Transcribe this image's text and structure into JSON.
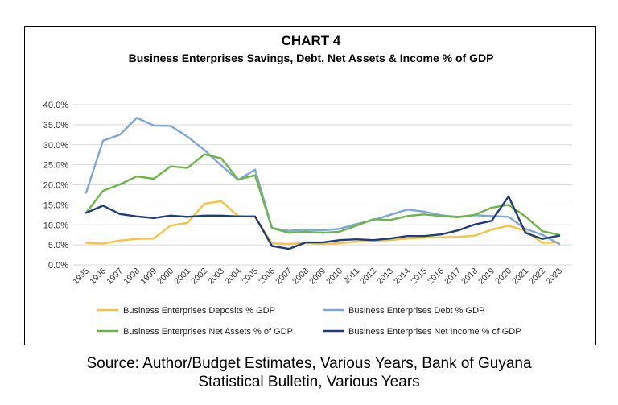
{
  "chart_data": {
    "type": "line",
    "title": "CHART 4",
    "subtitle": "Business Enterprises Savings, Debt, Net Assets & Income % of GDP",
    "xlabel": "",
    "ylabel": "",
    "ylim": [
      0,
      40
    ],
    "y_ticks": [
      "0.0%",
      "5.0%",
      "10.0%",
      "15.0%",
      "20.0%",
      "25.0%",
      "30.0%",
      "35.0%",
      "40.0%"
    ],
    "categories": [
      "1995",
      "1996",
      "1997",
      "1998",
      "1999",
      "2000",
      "2001",
      "2002",
      "2003",
      "2004",
      "2005",
      "2006",
      "2007",
      "2008",
      "2009",
      "2010",
      "2011",
      "2012",
      "2013",
      "2014",
      "2015",
      "2016",
      "2017",
      "2018",
      "2019",
      "2020",
      "2021",
      "2022",
      "2023"
    ],
    "grid": true,
    "legend_position": "bottom",
    "series": [
      {
        "name": "Business Enterprises Deposits % GDP",
        "color": "#F6C343",
        "values": [
          5.5,
          5.3,
          6.1,
          6.5,
          6.6,
          9.8,
          10.5,
          15.3,
          15.9,
          12.2,
          12.0,
          5.4,
          5.2,
          5.5,
          5.2,
          5.4,
          5.8,
          6.0,
          6.2,
          6.6,
          6.8,
          6.9,
          7.0,
          7.3,
          8.8,
          9.8,
          8.5,
          5.5,
          5.6
        ]
      },
      {
        "name": "Business Enterprises Debt % GDP",
        "color": "#7EA6D8",
        "values": [
          18.0,
          31.0,
          32.5,
          36.7,
          34.8,
          34.7,
          32.0,
          28.7,
          24.8,
          21.2,
          23.8,
          9.2,
          8.5,
          8.8,
          8.6,
          9.0,
          10.2,
          11.2,
          12.5,
          13.8,
          13.3,
          12.4,
          12.0,
          12.4,
          12.2,
          12.0,
          9.0,
          7.5,
          5.2
        ]
      },
      {
        "name": "Business Enterprises Net Assets % of GDP",
        "color": "#6DB548",
        "values": [
          13.0,
          18.5,
          20.1,
          22.1,
          21.5,
          24.6,
          24.2,
          27.6,
          26.6,
          21.3,
          22.4,
          9.2,
          8.0,
          8.3,
          8.0,
          8.3,
          9.8,
          11.4,
          11.2,
          12.2,
          12.6,
          12.2,
          11.9,
          12.5,
          14.3,
          15.0,
          12.1,
          8.4,
          7.5
        ]
      },
      {
        "name": "Business Enterprises Net Income % of GDP",
        "color": "#1F3D7A",
        "values": [
          13.0,
          14.8,
          12.7,
          12.1,
          11.7,
          12.3,
          12.0,
          12.3,
          12.3,
          12.1,
          12.1,
          4.7,
          4.0,
          5.6,
          5.6,
          6.2,
          6.4,
          6.2,
          6.6,
          7.2,
          7.2,
          7.6,
          8.6,
          10.1,
          11.0,
          17.1,
          8.0,
          6.5,
          7.3
        ]
      }
    ]
  },
  "source_line1": "Source: Author/Budget Estimates, Various Years, Bank of Guyana",
  "source_line2": "Statistical Bulletin, Various Years"
}
